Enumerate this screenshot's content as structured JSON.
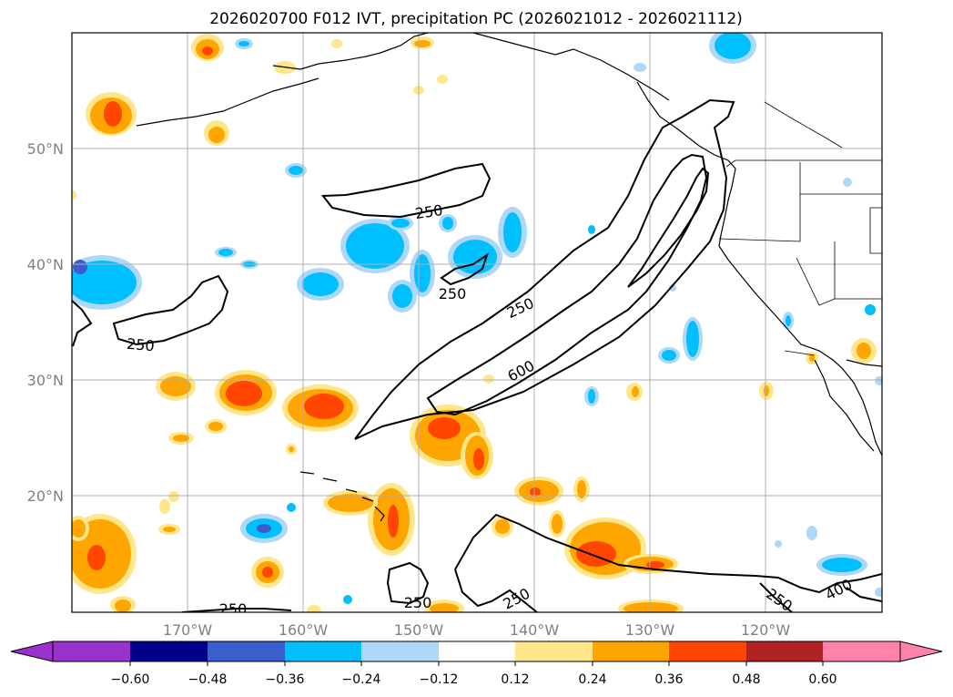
{
  "title": "2026020700 F012 IVT, precipitation PC (2026021012 - 2026021112)",
  "map": {
    "lon_labels": [
      "170°W",
      "160°W",
      "150°W",
      "140°W",
      "130°W",
      "120°W"
    ],
    "lat_labels": [
      "50°N",
      "40°N",
      "30°N",
      "20°N"
    ],
    "grid": true
  },
  "ivt_contour_labels": [
    "250",
    "250",
    "250",
    "250",
    "250",
    "250",
    "250",
    "250",
    "400",
    "600"
  ],
  "colorbar": {
    "ticks": [
      "−0.60",
      "−0.48",
      "−0.36",
      "−0.24",
      "−0.12",
      "0.12",
      "0.24",
      "0.36",
      "0.48",
      "0.60"
    ],
    "colors": [
      "#9932cc",
      "#00008b",
      "#3a5fcd",
      "#00bfff",
      "#add8f7",
      "#ffffff",
      "#ffe68a",
      "#ffa500",
      "#ff4500",
      "#b22222",
      "#ff82a9"
    ],
    "extend": "both"
  },
  "colors": {
    "coast": "#000000",
    "contour": "#000000",
    "grid": "#b0b0b0"
  }
}
